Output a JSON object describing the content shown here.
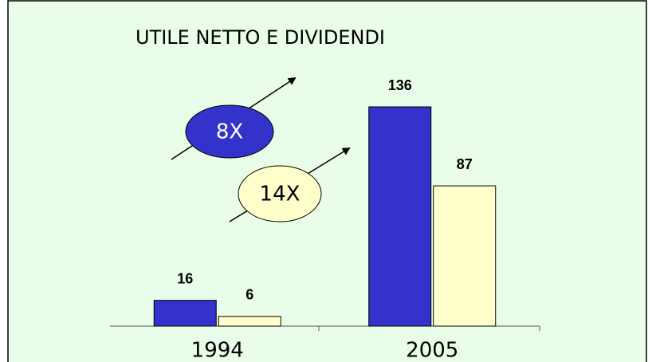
{
  "chart_data": {
    "type": "bar",
    "title": "UTILE NETTO E DIVIDENDI",
    "categories": [
      "1994",
      "2005"
    ],
    "series": [
      {
        "color": "#3333cc",
        "values": [
          16,
          136
        ]
      },
      {
        "color": "#ffffcc",
        "values": [
          6,
          87
        ]
      }
    ],
    "annotations": [
      "8X",
      "14X"
    ]
  }
}
